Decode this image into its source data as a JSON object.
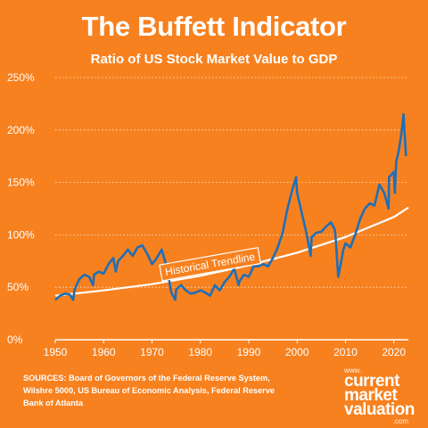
{
  "header": {
    "title": "The Buffett Indicator",
    "subtitle": "Ratio of US Stock Market Value to GDP"
  },
  "footer": {
    "sources": "SOURCES: Board of Governors of the Federal Reserve System, Wilshre 5000, US Bureau of Economic Analysis, Federal Reserve Bank of Atlanta",
    "brand": {
      "www": "www.",
      "line1": "current",
      "line2": "market",
      "line3": "valuation",
      "com": ".com"
    }
  },
  "colors": {
    "background": "#f7811f",
    "series": "#1f6fb8",
    "trendline": "#ffffff",
    "grid": "#ffffff"
  },
  "chart_data": {
    "type": "line",
    "title": "The Buffett Indicator",
    "subtitle": "Ratio of US Stock Market Value to GDP",
    "xlim": [
      1950,
      2023
    ],
    "ylim": [
      0,
      250
    ],
    "xticks": [
      1950,
      1960,
      1970,
      1980,
      1990,
      2000,
      2010,
      2020
    ],
    "yticks": [
      0,
      50,
      100,
      150,
      200,
      250
    ],
    "ytick_labels": [
      "0%",
      "50%",
      "100%",
      "150%",
      "200%",
      "250%"
    ],
    "grid": "horizontal dashed",
    "annotations": [
      {
        "text": "Historical Trendline",
        "x": 1982,
        "y": 72
      }
    ],
    "series": [
      {
        "kind": "ratio",
        "x": [
          1950,
          1951,
          1952,
          1953,
          1953.7,
          1954,
          1955,
          1956,
          1957,
          1957.8,
          1958,
          1959,
          1960,
          1961,
          1962,
          1962.5,
          1963,
          1964,
          1965,
          1966,
          1967,
          1968,
          1969,
          1970,
          1971,
          1972,
          1973,
          1974,
          1974.8,
          1975,
          1976,
          1977,
          1978,
          1979,
          1980,
          1981,
          1982,
          1983,
          1984,
          1985,
          1986,
          1987,
          1987.9,
          1988,
          1989,
          1990,
          1991,
          1992,
          1993,
          1994,
          1995,
          1996,
          1997,
          1998,
          1999,
          1999.8,
          2000,
          2001,
          2002,
          2002.8,
          2003,
          2004,
          2005,
          2006,
          2007,
          2007.8,
          2008,
          2008.5,
          2009,
          2009.5,
          2010,
          2011,
          2012,
          2013,
          2014,
          2015,
          2016,
          2017,
          2018,
          2018.9,
          2019,
          2020,
          2020.2,
          2020.5,
          2021,
          2021.5,
          2021.9,
          2022,
          2022.5
        ],
        "y": [
          38,
          42,
          44,
          43,
          38,
          48,
          58,
          62,
          60,
          52,
          62,
          65,
          63,
          72,
          78,
          65,
          75,
          80,
          86,
          80,
          88,
          90,
          82,
          72,
          78,
          86,
          70,
          45,
          38,
          48,
          52,
          47,
          44,
          45,
          47,
          45,
          42,
          52,
          47,
          55,
          60,
          68,
          52,
          55,
          62,
          60,
          70,
          70,
          72,
          70,
          78,
          88,
          102,
          125,
          143,
          155,
          140,
          120,
          100,
          80,
          98,
          102,
          103,
          108,
          112,
          105,
          95,
          60,
          72,
          85,
          92,
          88,
          100,
          115,
          125,
          130,
          128,
          148,
          140,
          125,
          155,
          160,
          140,
          170,
          180,
          195,
          210,
          215,
          175
        ]
      },
      {
        "kind": "trendline",
        "x": [
          1950,
          1960,
          1970,
          1980,
          1990,
          2000,
          2010,
          2020,
          2023
        ],
        "y": [
          42,
          47,
          53,
          61,
          71,
          83,
          98,
          117,
          126
        ]
      }
    ]
  }
}
